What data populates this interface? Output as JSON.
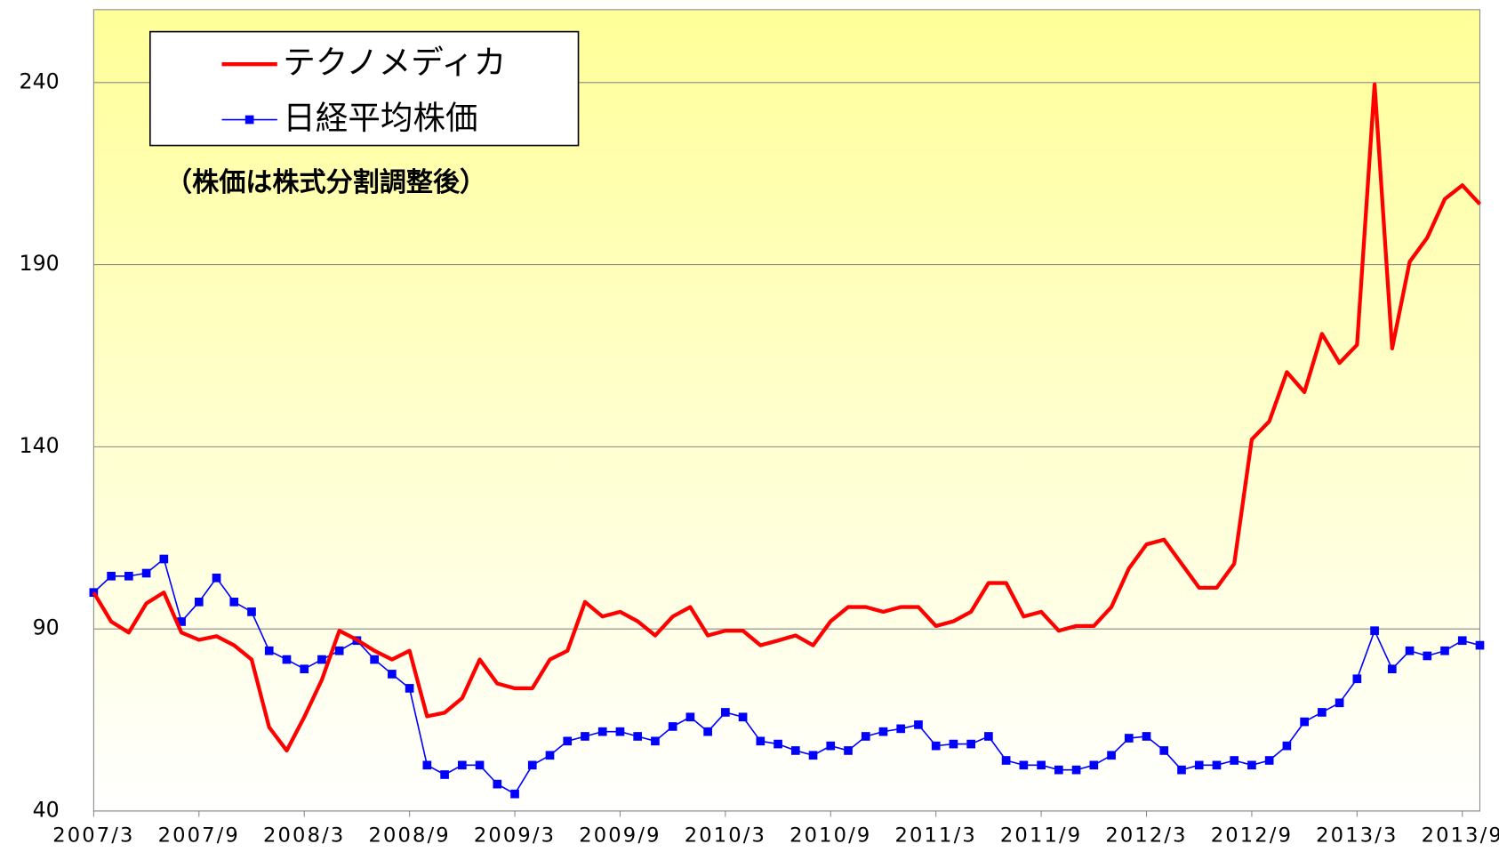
{
  "chart_data": {
    "type": "line",
    "annotation": "（株価は株式分割調整後）",
    "categories": [
      "2007/3",
      null,
      null,
      null,
      null,
      null,
      "2007/9",
      null,
      null,
      null,
      null,
      null,
      "2008/3",
      null,
      null,
      null,
      null,
      null,
      "2008/9",
      null,
      null,
      null,
      null,
      null,
      "2009/3",
      null,
      null,
      null,
      null,
      null,
      "2009/9",
      null,
      null,
      null,
      null,
      null,
      "2010/3",
      null,
      null,
      null,
      null,
      null,
      "2010/9",
      null,
      null,
      null,
      null,
      null,
      "2011/3",
      null,
      null,
      null,
      null,
      null,
      "2011/9",
      null,
      null,
      null,
      null,
      null,
      "2012/3",
      null,
      null,
      null,
      null,
      null,
      "2012/9",
      null,
      null,
      null,
      null,
      null,
      "2013/3",
      null,
      null,
      null,
      null,
      null,
      "2013/9",
      null
    ],
    "series": [
      {
        "name": "テクノメディカ",
        "color": "#ff0000",
        "marker": false,
        "values": [
          100,
          92,
          89,
          97,
          100,
          89,
          87,
          88,
          85.5,
          81.6,
          63,
          56.6,
          65.8,
          76,
          89.5,
          87,
          84,
          81.6,
          84,
          66,
          67,
          71,
          81.6,
          75,
          73.7,
          73.7,
          81.6,
          84,
          97.4,
          93.4,
          94.7,
          92.1,
          88.2,
          93.4,
          96,
          88.2,
          89.5,
          89.5,
          85.5,
          86.8,
          88.2,
          85.5,
          92.1,
          96,
          96,
          94.7,
          96,
          96,
          90.8,
          92.1,
          94.7,
          102.6,
          102.6,
          93.4,
          94.7,
          89.5,
          90.8,
          90.8,
          96,
          106.6,
          113.2,
          114.5,
          107.9,
          101.3,
          101.3,
          107.9,
          142,
          147,
          160.5,
          155,
          171,
          163,
          168,
          239.5,
          167,
          190.8,
          197.4,
          208,
          211.8,
          206.6
        ]
      },
      {
        "name": "日経平均株価",
        "color": "#0000ff",
        "marker": true,
        "values": [
          100,
          104.5,
          104.5,
          105.3,
          109.2,
          92,
          97.4,
          104,
          97.4,
          94.7,
          84,
          81.6,
          79,
          81.6,
          84,
          86.8,
          81.6,
          77.6,
          73.7,
          52.6,
          50,
          52.6,
          52.6,
          47.4,
          44.7,
          52.6,
          55.3,
          59.2,
          60.5,
          61.8,
          61.8,
          60.5,
          59.2,
          63.2,
          65.8,
          61.8,
          67.1,
          65.8,
          59.2,
          58.4,
          56.6,
          55.3,
          57.9,
          56.6,
          60.5,
          61.8,
          62.6,
          63.7,
          57.9,
          58.4,
          58.4,
          60.5,
          53.9,
          52.6,
          52.6,
          51.3,
          51.3,
          52.6,
          55.3,
          60,
          60.5,
          56.6,
          51.3,
          52.6,
          52.6,
          53.9,
          52.6,
          53.9,
          57.9,
          64.5,
          67.1,
          69.7,
          76.3,
          89.5,
          79,
          84,
          82.6,
          84,
          86.8,
          85.5
        ]
      }
    ],
    "ylim": [
      40,
      260
    ],
    "yticks": [
      40,
      90,
      140,
      190,
      240
    ],
    "grid": true,
    "legend": "upper left"
  }
}
